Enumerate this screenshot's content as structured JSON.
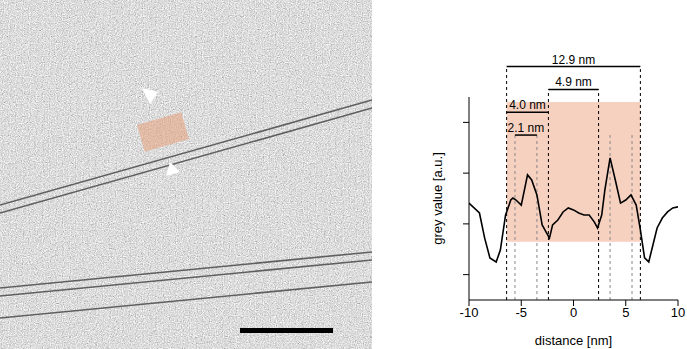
{
  "chart_data": {
    "type": "line",
    "xlabel": "distance [nm]",
    "ylabel": "grey value [a.u.]",
    "x": [
      -10,
      -9,
      -8.5,
      -8,
      -7.4,
      -7,
      -6.5,
      -6,
      -5.8,
      -5.5,
      -5,
      -4.7,
      -4.4,
      -4,
      -3.5,
      -3,
      -2.3,
      -2,
      -1.5,
      -1,
      -0.5,
      0,
      0.5,
      1,
      1.5,
      2,
      2.3,
      2.7,
      3,
      3.5,
      4,
      4.5,
      5,
      5.5,
      6,
      6.4,
      6.8,
      7.2,
      7.6,
      8,
      8.5,
      9,
      9.5,
      10
    ],
    "values": [
      3.82,
      3.43,
      2.44,
      1.66,
      1.5,
      1.97,
      3.35,
      3.94,
      4.02,
      3.94,
      3.74,
      4.33,
      4.93,
      4.73,
      4.14,
      2.96,
      2.44,
      2.96,
      3.15,
      3.47,
      3.63,
      3.55,
      3.43,
      3.35,
      3.35,
      3.07,
      2.84,
      3.35,
      4.33,
      5.6,
      4.73,
      3.82,
      3.94,
      4.14,
      3.74,
      2.76,
      1.66,
      1.5,
      2.17,
      2.84,
      3.23,
      3.47,
      3.63,
      3.67
    ],
    "color": "#000000",
    "xlim": [
      -10,
      10
    ],
    "xticks": [
      -10,
      -5,
      0,
      5,
      10
    ],
    "ylim": [
      0,
      8
    ],
    "yticks": [
      1,
      3,
      5,
      7
    ],
    "tick_labels": "x",
    "highlight": {
      "x": [
        -6.4,
        6.4
      ],
      "y": [
        2.3,
        7.8
      ],
      "color": "#f5c6b0"
    },
    "dashed_lines": [
      {
        "x": -6.4,
        "color": "#000000"
      },
      {
        "x": -5.6,
        "color": "#888888"
      },
      {
        "x": -3.5,
        "color": "#888888"
      },
      {
        "x": -2.4,
        "color": "#000000"
      },
      {
        "x": 2.4,
        "color": "#000000"
      },
      {
        "x": 3.5,
        "color": "#888888"
      },
      {
        "x": 5.6,
        "color": "#888888"
      },
      {
        "x": 6.4,
        "color": "#000000"
      }
    ],
    "annotations": [
      {
        "label": "12.9 nm",
        "from": -6.4,
        "to": 6.4
      },
      {
        "label": "4.9 nm",
        "from": -2.4,
        "to": 2.4
      },
      {
        "label": "4.0 nm",
        "from": -6.4,
        "to": -2.4
      },
      {
        "label": "2.1 nm",
        "from": -5.6,
        "to": -3.5
      }
    ]
  }
}
